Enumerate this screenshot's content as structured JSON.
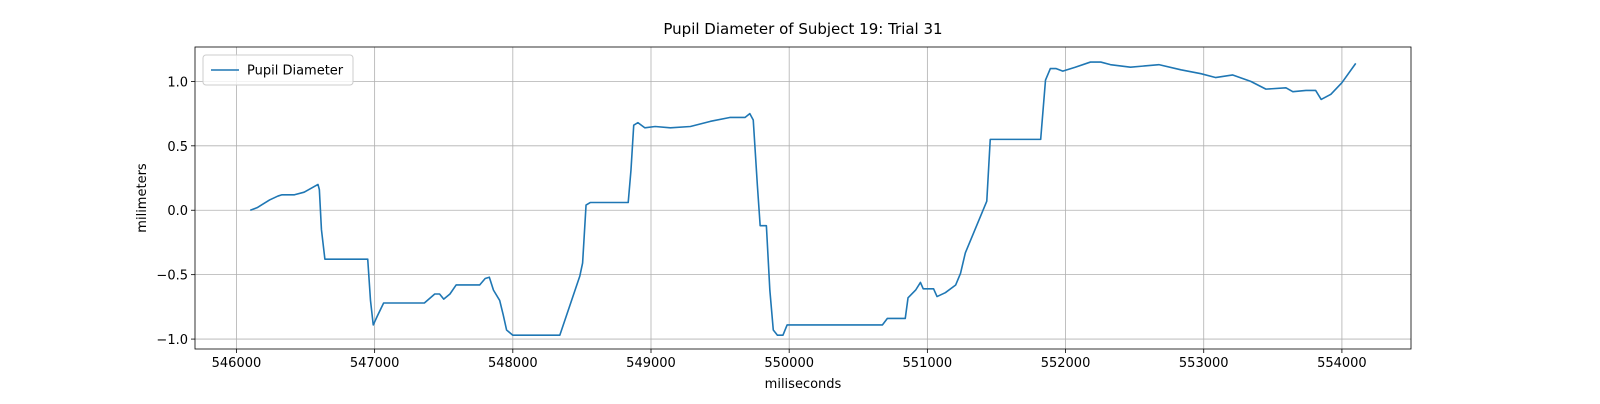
{
  "chart_data": {
    "type": "line",
    "title": "Pupil Diameter of Subject 19: Trial 31",
    "x_label": "miliseconds",
    "y_label": "milimeters",
    "xlim": [
      545700,
      554500
    ],
    "ylim": [
      -1.077,
      1.267
    ],
    "xticks": [
      546000,
      547000,
      548000,
      549000,
      550000,
      551000,
      552000,
      553000,
      554000
    ],
    "yticks": [
      {
        "value": -1,
        "label": "−1.0"
      },
      {
        "value": -0.5,
        "label": "−0.5"
      },
      {
        "value": 0,
        "label": "0.0"
      },
      {
        "value": 0.5,
        "label": "0.5"
      },
      {
        "value": 1,
        "label": "1.0"
      }
    ],
    "grid": true,
    "legend": "upper left",
    "x": [
      546100,
      546150,
      546180,
      546240,
      546300,
      546330,
      546420,
      546490,
      546540,
      546590,
      546600,
      546615,
      546640,
      546950,
      546970,
      546990,
      547020,
      547065,
      547360,
      547435,
      547470,
      547500,
      547545,
      547590,
      547760,
      547800,
      547830,
      547860,
      547905,
      547930,
      547955,
      548000,
      548340,
      548485,
      548505,
      548530,
      548560,
      548835,
      548855,
      548875,
      548905,
      548955,
      549030,
      549140,
      549285,
      549430,
      549570,
      549680,
      549715,
      549740,
      549770,
      549790,
      549835,
      549860,
      549885,
      549915,
      549955,
      549985,
      550675,
      550710,
      550840,
      550860,
      550915,
      550950,
      550970,
      551045,
      551070,
      551130,
      551205,
      551240,
      551275,
      551430,
      551455,
      551480,
      551820,
      551855,
      551890,
      551930,
      551980,
      552070,
      552180,
      552255,
      552325,
      552470,
      552675,
      552835,
      552980,
      553085,
      553210,
      553340,
      553450,
      553595,
      553645,
      553740,
      553810,
      553850,
      553920,
      554000,
      554100
    ],
    "series": [
      {
        "name": "Pupil Diameter",
        "color": "#1f77b4",
        "values": [
          0.0,
          0.02,
          0.04,
          0.08,
          0.11,
          0.12,
          0.12,
          0.14,
          0.17,
          0.2,
          0.16,
          -0.15,
          -0.38,
          -0.38,
          -0.7,
          -0.89,
          -0.82,
          -0.72,
          -0.72,
          -0.65,
          -0.65,
          -0.69,
          -0.65,
          -0.58,
          -0.58,
          -0.53,
          -0.52,
          -0.62,
          -0.7,
          -0.81,
          -0.93,
          -0.97,
          -0.97,
          -0.51,
          -0.41,
          0.04,
          0.06,
          0.06,
          0.31,
          0.66,
          0.68,
          0.64,
          0.65,
          0.64,
          0.65,
          0.69,
          0.72,
          0.72,
          0.75,
          0.7,
          0.19,
          -0.12,
          -0.12,
          -0.62,
          -0.93,
          -0.97,
          -0.97,
          -0.89,
          -0.89,
          -0.84,
          -0.84,
          -0.68,
          -0.62,
          -0.56,
          -0.61,
          -0.61,
          -0.67,
          -0.64,
          -0.58,
          -0.49,
          -0.33,
          0.07,
          0.55,
          0.55,
          0.55,
          1.01,
          1.1,
          1.1,
          1.08,
          1.11,
          1.15,
          1.15,
          1.13,
          1.11,
          1.13,
          1.09,
          1.06,
          1.03,
          1.05,
          1.0,
          0.94,
          0.95,
          0.92,
          0.93,
          0.93,
          0.86,
          0.9,
          0.99,
          1.14
        ]
      }
    ]
  }
}
